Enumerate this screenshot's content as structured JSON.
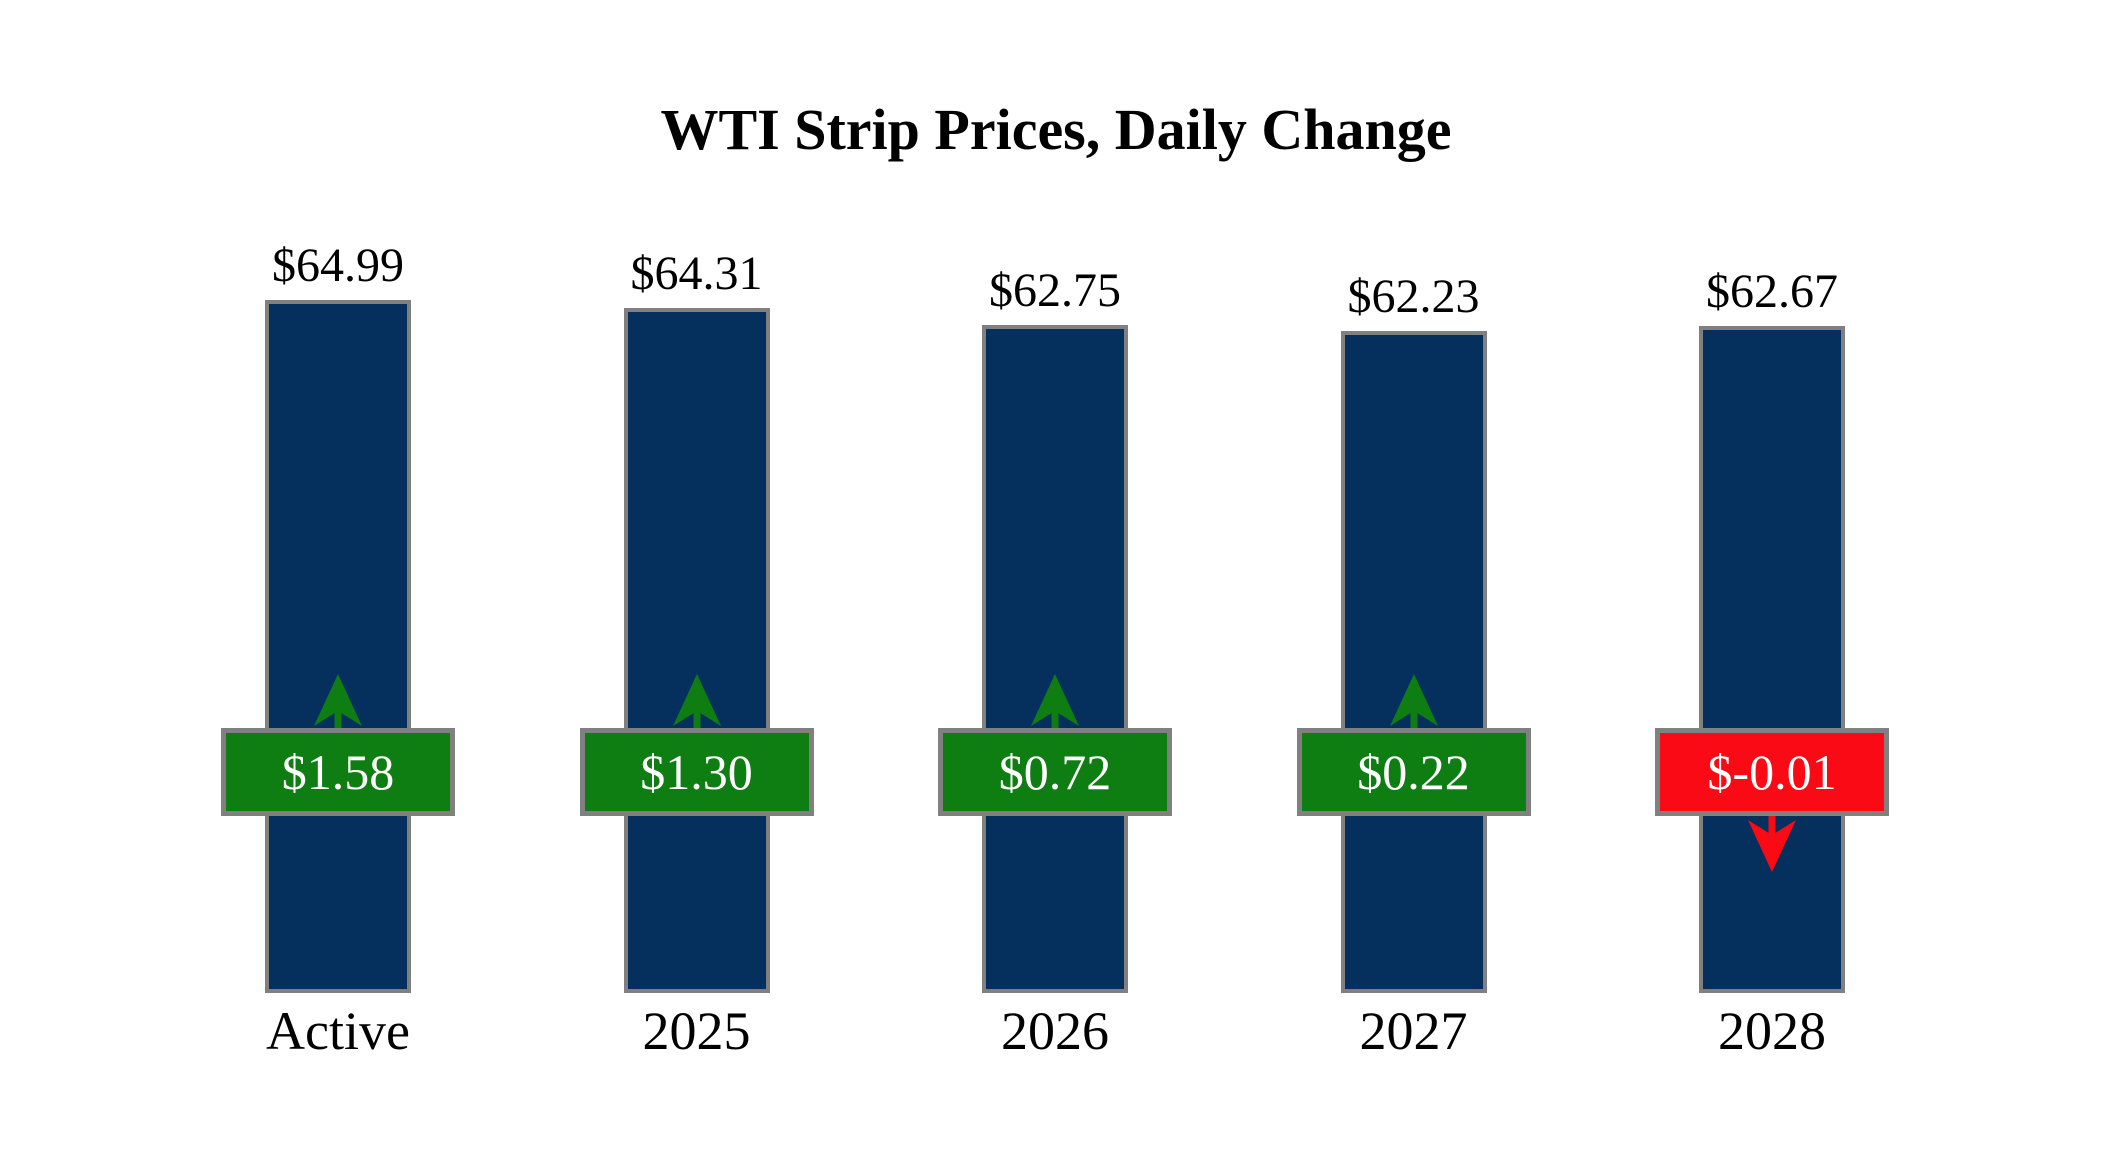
{
  "title": "WTI Strip Prices, Daily Change",
  "colors": {
    "background": "#ffffff",
    "text": "#000000",
    "bar": "#05305e",
    "border": "#808080",
    "positive": "#0e7d12",
    "negative": "#fa0a14",
    "badge_text": "#ffffff"
  },
  "chart_data": {
    "type": "bar",
    "title": "WTI Strip Prices, Daily Change",
    "categories": [
      "Active",
      "2025",
      "2026",
      "2027",
      "2028"
    ],
    "series": [
      {
        "name": "WTI Strip Price",
        "values": [
          64.99,
          64.31,
          62.75,
          62.23,
          62.67
        ],
        "labels": [
          "$64.99",
          "$64.31",
          "$62.75",
          "$62.23",
          "$62.67"
        ]
      },
      {
        "name": "Daily Change",
        "values": [
          1.58,
          1.3,
          0.72,
          0.22,
          -0.01
        ],
        "labels": [
          "$1.58",
          "$1.30",
          "$0.72",
          "$0.22",
          "$-0.01"
        ],
        "directions": [
          "up",
          "up",
          "up",
          "up",
          "down"
        ]
      }
    ],
    "legend": false,
    "grid": false,
    "value_axis_visible": false,
    "bar_color": "#05305e",
    "positive_change_color": "#0e7d12",
    "negative_change_color": "#fa0a14"
  }
}
